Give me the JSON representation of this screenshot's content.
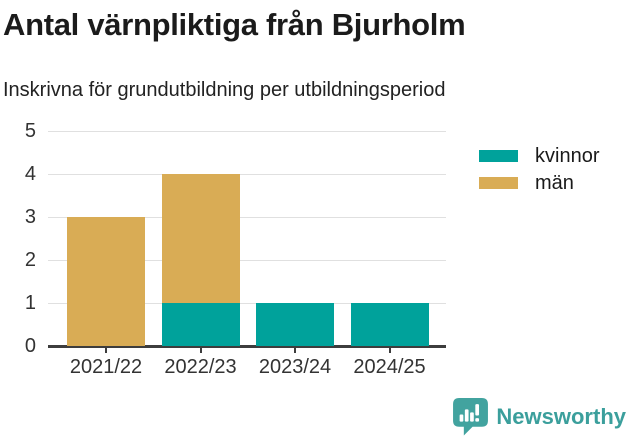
{
  "title": "Antal värnpliktiga från Bjurholm",
  "subtitle": "Inskrivna för grundutbildning per utbildningsperiod",
  "footer": {
    "brand": "Newsworthy",
    "brand_color": "#3b9f9c",
    "logo_color": "#42a39f"
  },
  "chart_data": {
    "type": "bar",
    "stacked": true,
    "title": "Antal värnpliktiga från Bjurholm",
    "subtitle": "Inskrivna för grundutbildning per utbildningsperiod",
    "categories": [
      "2021/22",
      "2022/23",
      "2023/24",
      "2024/25"
    ],
    "series": [
      {
        "name": "kvinnor",
        "color": "#00a29b",
        "values": [
          0,
          1,
          1,
          1
        ]
      },
      {
        "name": "män",
        "color": "#d9ac55",
        "values": [
          3,
          3,
          0,
          0
        ]
      }
    ],
    "totals": [
      3,
      4,
      1,
      1
    ],
    "xlabel": "",
    "ylabel": "",
    "ylim": [
      0,
      5
    ],
    "yticks": [
      0,
      1,
      2,
      3,
      4,
      5
    ],
    "grid": true,
    "legend_position": "right",
    "grid_color": "#e0e0e0",
    "axis_color": "#3d3d3d",
    "tick_label_color": "#333333"
  }
}
